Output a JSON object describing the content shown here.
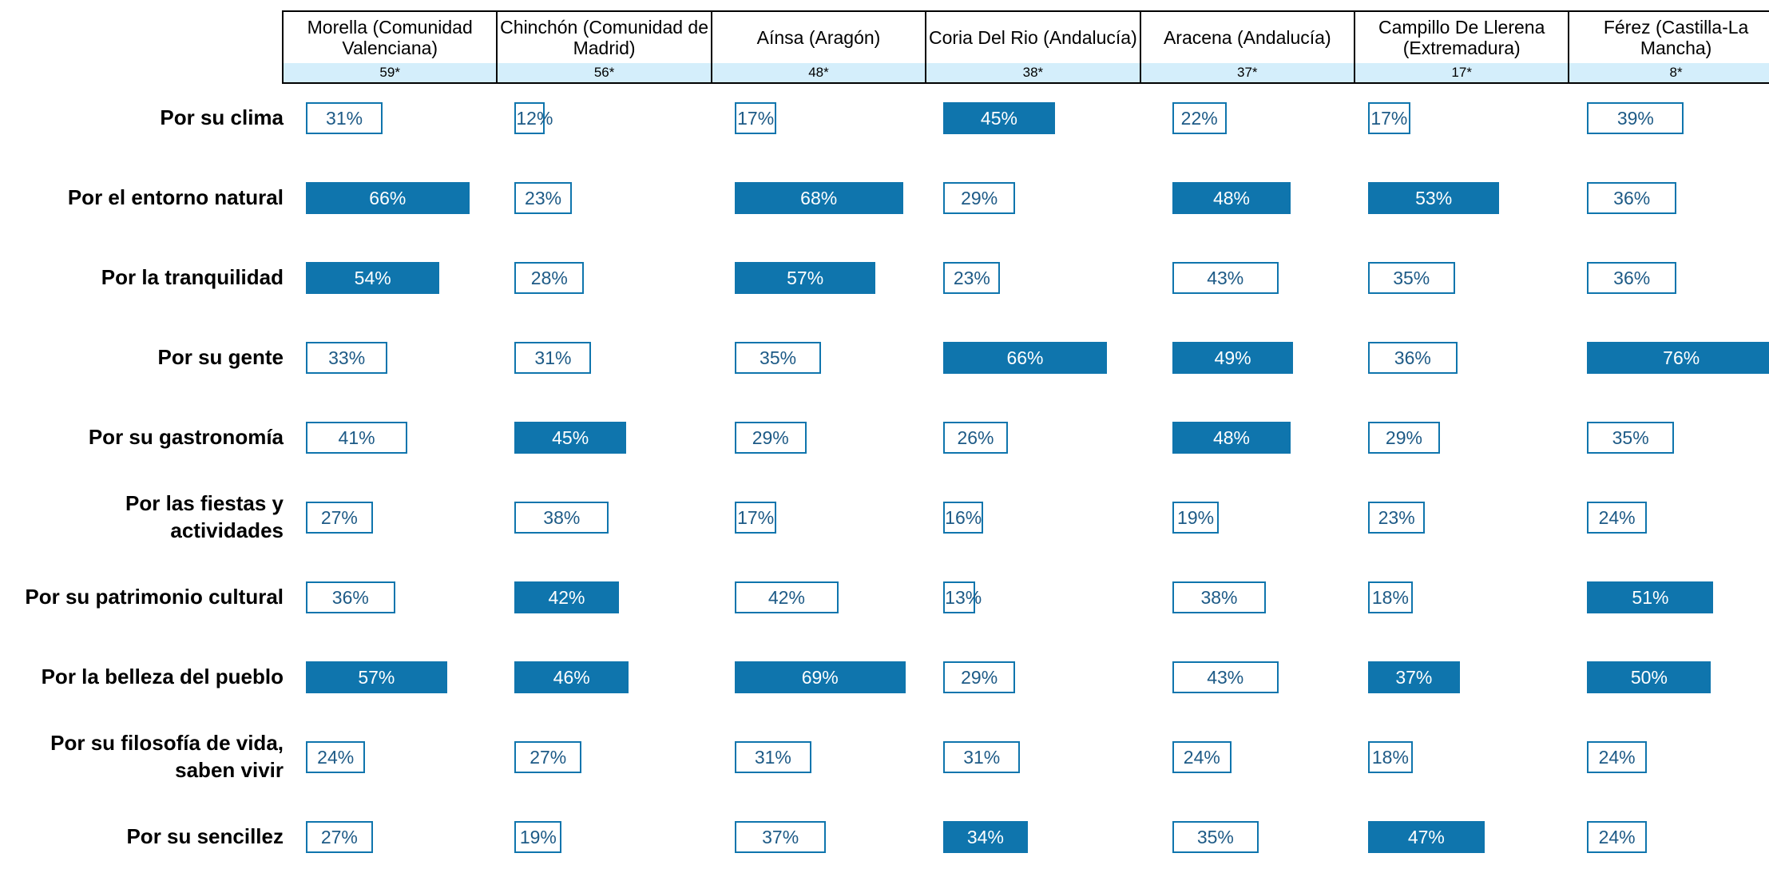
{
  "chart_data": {
    "type": "bar",
    "categories": [
      "Por su clima",
      "Por el entorno natural",
      "Por la tranquilidad",
      "Por su gente",
      "Por su gastronomía",
      "Por las fiestas y actividades",
      "Por su patrimonio cultural",
      "Por la belleza del pueblo",
      "Por su filosofía de vida, saben vivir",
      "Por su sencillez"
    ],
    "series": [
      {
        "name": "Morella (Comunidad Valenciana)",
        "base": "59*",
        "values": [
          31,
          66,
          54,
          33,
          41,
          27,
          36,
          57,
          24,
          27
        ],
        "value_labels": [
          "31%",
          "66%",
          "54%",
          "33%",
          "41%",
          "27%",
          "36%",
          "57%",
          "24%",
          "27%"
        ],
        "colors": [
          "#ffffff",
          "#0f75ad",
          "#0f75ad",
          "#ffffff",
          "#ffffff",
          "#ffffff",
          "#ffffff",
          "#0f75ad",
          "#ffffff",
          "#ffffff"
        ]
      },
      {
        "name": "Chinchón (Comunidad de Madrid)",
        "base": "56*",
        "values": [
          12,
          23,
          28,
          31,
          45,
          38,
          42,
          46,
          27,
          19
        ],
        "value_labels": [
          "12%",
          "23%",
          "28%",
          "31%",
          "45%",
          "38%",
          "42%",
          "46%",
          "27%",
          "19%"
        ],
        "colors": [
          "#ffffff",
          "#ffffff",
          "#ffffff",
          "#ffffff",
          "#0f75ad",
          "#ffffff",
          "#0f75ad",
          "#0f75ad",
          "#ffffff",
          "#ffffff"
        ]
      },
      {
        "name": "Aínsa (Aragón)",
        "base": "48*",
        "values": [
          17,
          68,
          57,
          35,
          29,
          17,
          42,
          69,
          31,
          37
        ],
        "value_labels": [
          "17%",
          "68%",
          "57%",
          "35%",
          "29%",
          "17%",
          "42%",
          "69%",
          "31%",
          "37%"
        ],
        "colors": [
          "#ffffff",
          "#0f75ad",
          "#0f75ad",
          "#ffffff",
          "#ffffff",
          "#ffffff",
          "#ffffff",
          "#0f75ad",
          "#ffffff",
          "#ffffff"
        ]
      },
      {
        "name": "Coria Del Rio (Andalucía)",
        "base": "38*",
        "values": [
          45,
          29,
          23,
          66,
          26,
          16,
          13,
          29,
          31,
          34
        ],
        "value_labels": [
          "45%",
          "29%",
          "23%",
          "66%",
          "26%",
          "16%",
          "13%",
          "29%",
          "31%",
          "34%"
        ],
        "colors": [
          "#0f75ad",
          "#ffffff",
          "#ffffff",
          "#0f75ad",
          "#ffffff",
          "#ffffff",
          "#ffffff",
          "#ffffff",
          "#ffffff",
          "#0f75ad"
        ]
      },
      {
        "name": "Aracena (Andalucía)",
        "base": "37*",
        "values": [
          22,
          48,
          43,
          49,
          48,
          19,
          38,
          43,
          24,
          35
        ],
        "value_labels": [
          "22%",
          "48%",
          "43%",
          "49%",
          "48%",
          "19%",
          "38%",
          "43%",
          "24%",
          "35%"
        ],
        "colors": [
          "#ffffff",
          "#0f75ad",
          "#ffffff",
          "#0f75ad",
          "#0f75ad",
          "#ffffff",
          "#ffffff",
          "#ffffff",
          "#ffffff",
          "#ffffff"
        ]
      },
      {
        "name": "Campillo De Llerena (Extremadura)",
        "base": "17*",
        "values": [
          17,
          53,
          35,
          36,
          29,
          23,
          18,
          37,
          18,
          47
        ],
        "value_labels": [
          "17%",
          "53%",
          "35%",
          "36%",
          "29%",
          "23%",
          "18%",
          "37%",
          "18%",
          "47%"
        ],
        "colors": [
          "#ffffff",
          "#0f75ad",
          "#ffffff",
          "#ffffff",
          "#ffffff",
          "#ffffff",
          "#ffffff",
          "#0f75ad",
          "#ffffff",
          "#0f75ad"
        ]
      },
      {
        "name": "Férez (Castilla-La Mancha)",
        "base": "8*",
        "values": [
          39,
          36,
          36,
          76,
          35,
          24,
          51,
          50,
          24,
          24
        ],
        "value_labels": [
          "39%",
          "36%",
          "36%",
          "76%",
          "35%",
          "24%",
          "51%",
          "50%",
          "24%",
          "24%"
        ],
        "colors": [
          "#ffffff",
          "#ffffff",
          "#ffffff",
          "#0f75ad",
          "#ffffff",
          "#ffffff",
          "#0f75ad",
          "#0f75ad",
          "#ffffff",
          "#ffffff"
        ]
      }
    ]
  }
}
